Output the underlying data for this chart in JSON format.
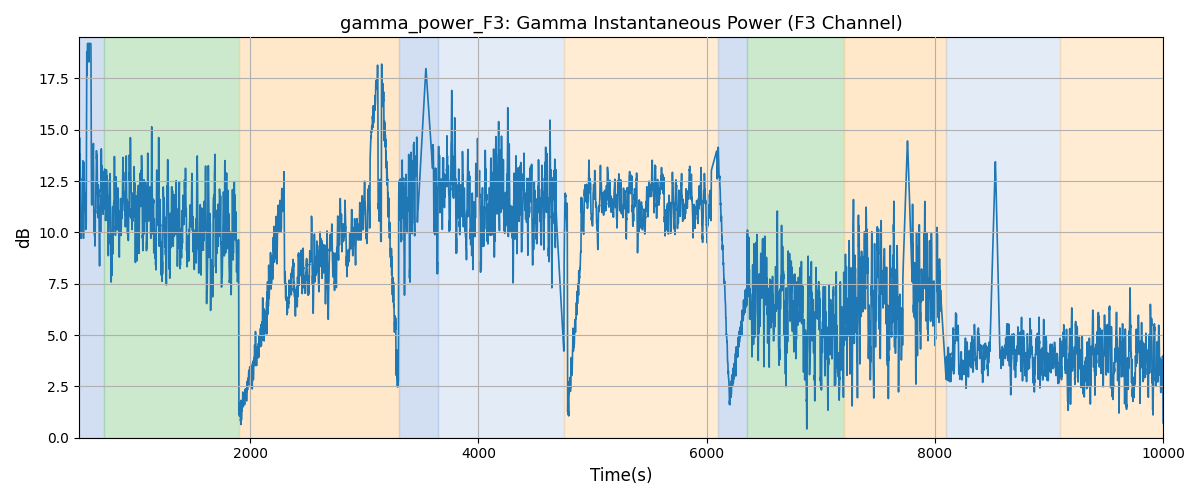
{
  "title": "gamma_power_F3: Gamma Instantaneous Power (F3 Channel)",
  "xlabel": "Time(s)",
  "ylabel": "dB",
  "xlim": [
    500,
    10000
  ],
  "ylim": [
    0.0,
    19.5
  ],
  "yticks": [
    0.0,
    2.5,
    5.0,
    7.5,
    10.0,
    12.5,
    15.0,
    17.5
  ],
  "xticks": [
    2000,
    4000,
    6000,
    8000,
    10000
  ],
  "line_color": "#1f77b4",
  "line_width": 1.2,
  "background_color": "#ffffff",
  "grid_color": "#b0b0b0",
  "regions": [
    {
      "start": 500,
      "end": 720,
      "color": "#aec6e8",
      "alpha": 0.55
    },
    {
      "start": 720,
      "end": 1900,
      "color": "#90d090",
      "alpha": 0.45
    },
    {
      "start": 1900,
      "end": 3300,
      "color": "#ffd59e",
      "alpha": 0.55
    },
    {
      "start": 3300,
      "end": 3650,
      "color": "#aec6e8",
      "alpha": 0.55
    },
    {
      "start": 3650,
      "end": 4750,
      "color": "#aec6e8",
      "alpha": 0.35
    },
    {
      "start": 4750,
      "end": 6100,
      "color": "#ffd59e",
      "alpha": 0.45
    },
    {
      "start": 6100,
      "end": 6350,
      "color": "#aec6e8",
      "alpha": 0.55
    },
    {
      "start": 6350,
      "end": 7200,
      "color": "#90d090",
      "alpha": 0.45
    },
    {
      "start": 7200,
      "end": 8100,
      "color": "#ffd59e",
      "alpha": 0.55
    },
    {
      "start": 8100,
      "end": 9100,
      "color": "#aec6e8",
      "alpha": 0.35
    },
    {
      "start": 9100,
      "end": 10000,
      "color": "#ffd59e",
      "alpha": 0.45
    }
  ],
  "seed": 17,
  "n_points": 9500
}
